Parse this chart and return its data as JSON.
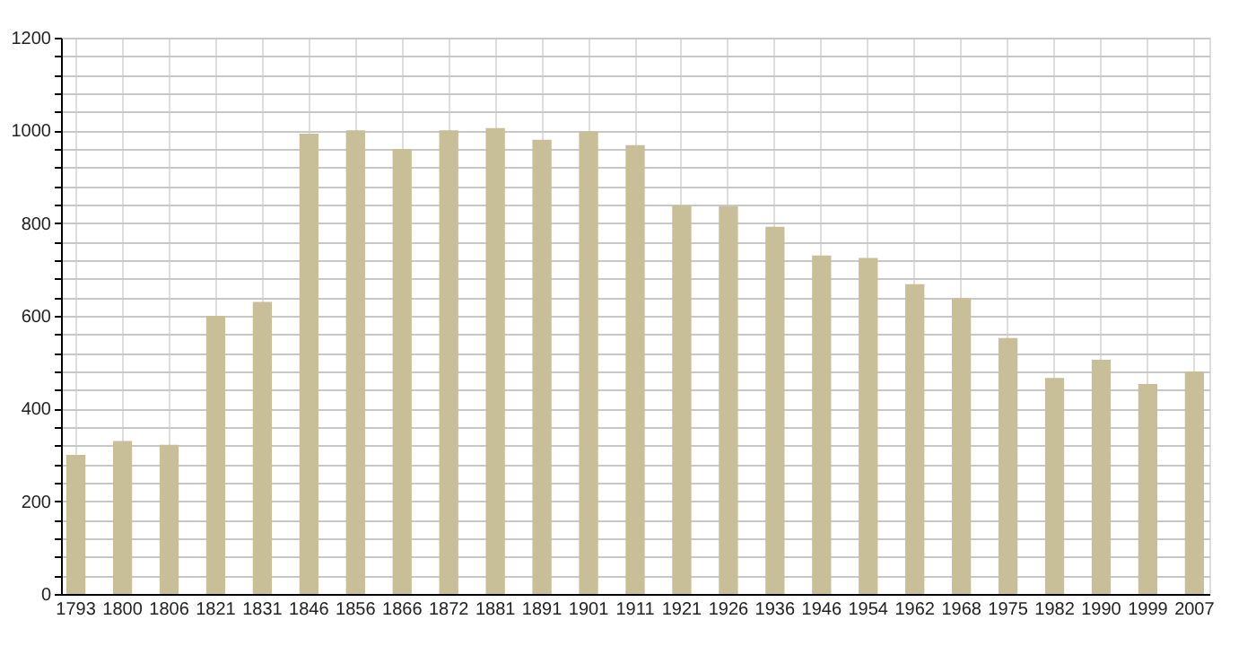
{
  "chart_data": {
    "type": "bar",
    "categories": [
      "1793",
      "1800",
      "1806",
      "1821",
      "1831",
      "1846",
      "1856",
      "1866",
      "1872",
      "1881",
      "1891",
      "1901",
      "1911",
      "1921",
      "1926",
      "1936",
      "1946",
      "1954",
      "1962",
      "1968",
      "1975",
      "1982",
      "1990",
      "1999",
      "2007"
    ],
    "values": [
      300,
      330,
      322,
      600,
      630,
      993,
      1000,
      960,
      1000,
      1005,
      980,
      998,
      968,
      838,
      836,
      792,
      730,
      725,
      668,
      638,
      552,
      466,
      505,
      453,
      480
    ],
    "color": "#c8be98",
    "ylim": [
      0,
      1200
    ],
    "yticks": [
      0,
      {
        "value": 40,
        "label": null
      },
      {
        "value": 80,
        "label": null
      },
      {
        "value": 120,
        "label": null
      },
      {
        "value": 160,
        "label": null
      },
      200,
      {
        "value": 240,
        "label": null
      },
      {
        "value": 280,
        "label": null
      },
      {
        "value": 320,
        "label": null
      },
      {
        "value": 360,
        "label": null
      },
      400,
      {
        "value": 440,
        "label": null
      },
      {
        "value": 480,
        "label": null
      },
      {
        "value": 520,
        "label": null
      },
      {
        "value": 560,
        "label": null
      },
      600,
      {
        "value": 640,
        "label": null
      },
      {
        "value": 680,
        "label": null
      },
      {
        "value": 720,
        "label": null
      },
      {
        "value": 760,
        "label": null
      },
      800,
      {
        "value": 840,
        "label": null
      },
      {
        "value": 880,
        "label": null
      },
      {
        "value": 920,
        "label": null
      },
      {
        "value": 960,
        "label": null
      },
      1000,
      {
        "value": 1040,
        "label": null
      },
      {
        "value": 1080,
        "label": null
      },
      {
        "value": 1120,
        "label": null
      },
      {
        "value": 1160,
        "label": null
      },
      1200
    ],
    "grid": true
  }
}
